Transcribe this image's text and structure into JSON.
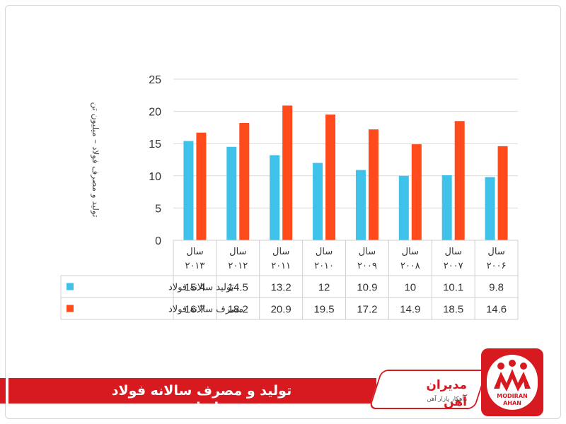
{
  "chart_data": {
    "type": "bar",
    "ylabel": "تولید و مصرف فولاد – میلیون تن",
    "ylim": [
      0,
      25
    ],
    "yticks": [
      0,
      5,
      10,
      15,
      20,
      25
    ],
    "categories": [
      [
        "سال",
        "۲۰۱۳"
      ],
      [
        "سال",
        "۲۰۱۲"
      ],
      [
        "سال",
        "۲۰۱۱"
      ],
      [
        "سال",
        "۲۰۱۰"
      ],
      [
        "سال",
        "۲۰۰۹"
      ],
      [
        "سال",
        "۲۰۰۸"
      ],
      [
        "سال",
        "۲۰۰۷"
      ],
      [
        "سال",
        "۲۰۰۶"
      ]
    ],
    "series": [
      {
        "name": "تولید سالانه فولاد",
        "color": "#3ec2ea",
        "values": [
          15.4,
          14.5,
          13.2,
          12,
          10.9,
          10,
          10.1,
          9.8
        ],
        "labels": [
          "15.4",
          "14.5",
          "13.2",
          "12",
          "10.9",
          "10",
          "10.1",
          "9.8"
        ]
      },
      {
        "name": "مصرف سالانه فولاد",
        "color": "#ff4a1c",
        "values": [
          16.7,
          18.2,
          20.9,
          19.5,
          17.2,
          14.9,
          18.5,
          14.6
        ],
        "labels": [
          "16.7",
          "18.2",
          "20.9",
          "19.5",
          "17.2",
          "14.9",
          "18.5",
          "14.6"
        ]
      }
    ],
    "grid": true,
    "legend": "in data table"
  },
  "banner": {
    "title": "تولید و مصرف سالانه فولاد ایران"
  },
  "brand": {
    "name": "مدیران آهن",
    "tagline": "راهکار بازار آهن",
    "logo_text_line1": "MODIRAN",
    "logo_text_line2": "AHAN",
    "color": "#d71920"
  }
}
